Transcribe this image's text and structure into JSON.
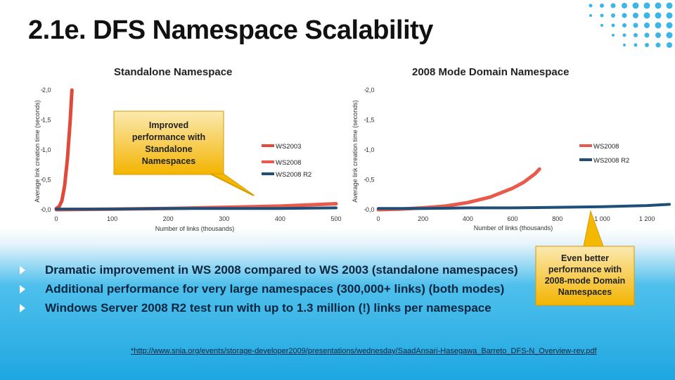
{
  "slide": {
    "title": "2.1e. DFS Namespace Scalability",
    "bullets": [
      "Dramatic improvement in WS 2008 compared to WS 2003 (standalone namespaces)",
      "Additional performance for very large namespaces (300,000+ links) (both modes)",
      "Windows Server 2008 R2 test run with up to 1.3 million (!) links per namespace"
    ],
    "footnote": "*http://www.snia.org/events/storage-developer2009/presentations/wednesday/SaadAnsari-Hasegawa_Barreto_DFS-N_Overview-rev.pdf",
    "callout_standalone": [
      "Improved",
      "performance with",
      "Standalone",
      "Namespaces"
    ],
    "callout_domain": [
      "Even better",
      "performance with",
      "2008-mode Domain",
      "Namespaces"
    ]
  },
  "colors": {
    "ws2003": "#e04a3a",
    "ws2008": "#e85b4c",
    "ws2008r2": "#1f4e79",
    "callout_fill": "#f5b800",
    "bullet_text": "#0a2540"
  },
  "chart_data": [
    {
      "type": "line",
      "title": "Standalone Namespace",
      "xlabel": "Number of links (thousands)",
      "ylabel": "Average link creation time (seconds)",
      "xlim": [
        0,
        500
      ],
      "ylim": [
        0,
        2
      ],
      "x_ticks": [
        "0",
        "100",
        "200",
        "300",
        "400",
        "500"
      ],
      "y_ticks": [
        "0,0",
        "0,5",
        "1,0",
        "1,5",
        "2,0"
      ],
      "legend_position": "right",
      "series": [
        {
          "name": "WS2003",
          "x": [
            0,
            5,
            10,
            15,
            20,
            25,
            28
          ],
          "y": [
            0.02,
            0.05,
            0.15,
            0.4,
            0.85,
            1.5,
            2.0
          ]
        },
        {
          "name": "WS2008",
          "x": [
            0,
            100,
            200,
            300,
            400,
            500
          ],
          "y": [
            0.0,
            0.01,
            0.02,
            0.04,
            0.06,
            0.1
          ]
        },
        {
          "name": "WS2008 R2",
          "x": [
            0,
            100,
            200,
            300,
            400,
            500
          ],
          "y": [
            0.01,
            0.01,
            0.02,
            0.02,
            0.02,
            0.03
          ]
        }
      ]
    },
    {
      "type": "line",
      "title": "2008 Mode Domain Namespace",
      "xlabel": "Number of links (thousands)",
      "ylabel": "Average link creation time (seconds)",
      "xlim": [
        0,
        1300
      ],
      "ylim": [
        0,
        2
      ],
      "x_ticks": [
        "0",
        "200",
        "400",
        "600",
        "800",
        "1 000",
        "1 200"
      ],
      "y_ticks": [
        "0,0",
        "0,5",
        "1,0",
        "1,5",
        "2,0"
      ],
      "legend_position": "right",
      "series": [
        {
          "name": "WS2008",
          "x": [
            0,
            100,
            200,
            300,
            400,
            500,
            600,
            650,
            700,
            720
          ],
          "y": [
            0.0,
            0.01,
            0.03,
            0.06,
            0.12,
            0.21,
            0.36,
            0.46,
            0.6,
            0.68
          ]
        },
        {
          "name": "WS2008 R2",
          "x": [
            0,
            200,
            400,
            600,
            800,
            1000,
            1200,
            1300
          ],
          "y": [
            0.02,
            0.02,
            0.03,
            0.03,
            0.04,
            0.05,
            0.07,
            0.09
          ]
        }
      ]
    }
  ]
}
